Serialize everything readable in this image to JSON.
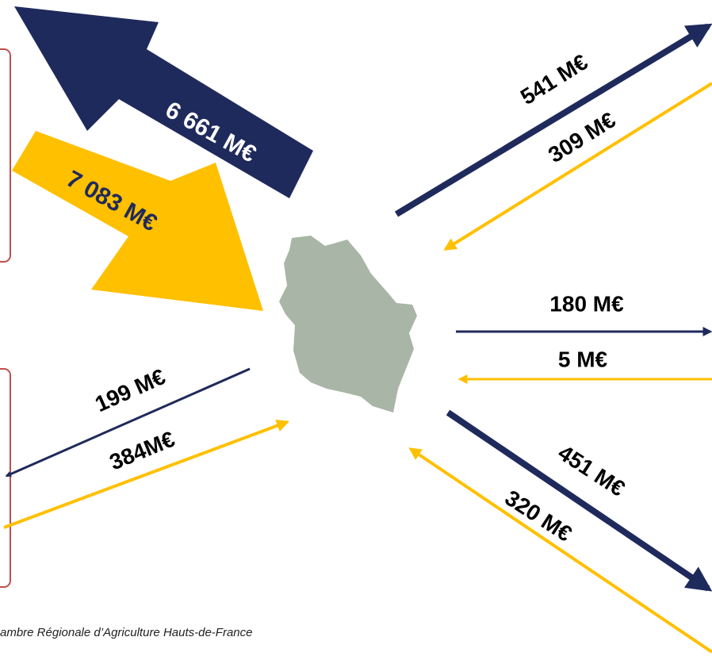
{
  "flows": [
    {
      "label": "6 661 M€"
    },
    {
      "label": "7 083 M€"
    },
    {
      "label": "541 M€"
    },
    {
      "label": "309 M€"
    },
    {
      "label": "180 M€"
    },
    {
      "label": "5 M€"
    },
    {
      "label": "451 M€"
    },
    {
      "label": "320 M€"
    },
    {
      "label": "199 M€"
    },
    {
      "label": "384M€"
    }
  ],
  "source": "ambre Régionale d’Agriculture Hauts-de-France"
}
